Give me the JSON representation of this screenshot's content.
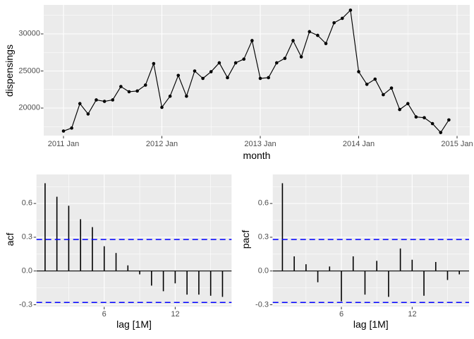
{
  "figure": {
    "background": "#ffffff",
    "panel_background": "#ebebeb",
    "grid_color": "#ffffff",
    "tick_label_color": "#4d4d4d",
    "tick_mark_color": "#333333",
    "series_color": "#000000",
    "ci_color": "#0000ff"
  },
  "chart_data": [
    {
      "id": "dispensings-timeseries",
      "type": "line",
      "xlabel": "month",
      "ylabel": "dispensings",
      "x_start": "2011 Jan",
      "x_interval_months": 1,
      "x_tick_labels": [
        "2011 Jan",
        "2012 Jan",
        "2013 Jan",
        "2014 Jan",
        "2015 Jan"
      ],
      "y_tick_labels": [
        "30000",
        "25000",
        "20000"
      ],
      "y_ticks": [
        30000,
        25000,
        20000
      ],
      "ylim": [
        16000,
        34000
      ],
      "grid": true,
      "legend": "none",
      "values": [
        16900,
        17300,
        20600,
        19200,
        21100,
        20900,
        21100,
        22900,
        22200,
        22300,
        23100,
        26000,
        20100,
        21600,
        24400,
        21600,
        25000,
        24000,
        24900,
        26100,
        24100,
        26100,
        26600,
        29100,
        24000,
        24100,
        26100,
        26700,
        29100,
        26900,
        30300,
        29800,
        28700,
        31500,
        32100,
        33200,
        24900,
        23200,
        23900,
        21800,
        22700,
        19800,
        20600,
        18800,
        18700,
        17900,
        16700,
        18400
      ]
    },
    {
      "id": "acf",
      "type": "stem",
      "xlabel": "lag [1M]",
      "ylabel": "acf",
      "x_tick_labels": [
        "6",
        "12"
      ],
      "x_ticks": [
        6,
        12
      ],
      "y_tick_labels": [
        "0.6",
        "0.3",
        "0.0",
        "-0.3"
      ],
      "y_ticks": [
        0.6,
        0.3,
        0.0,
        -0.3
      ],
      "ylim": [
        -0.32,
        0.86
      ],
      "grid": true,
      "zero_line": true,
      "conf_bounds": [
        0.28,
        -0.28
      ],
      "lags": [
        1,
        2,
        3,
        4,
        5,
        6,
        7,
        8,
        9,
        10,
        11,
        12,
        13,
        14,
        15,
        16
      ],
      "values": [
        0.78,
        0.66,
        0.58,
        0.46,
        0.39,
        0.22,
        0.16,
        0.05,
        -0.03,
        -0.13,
        -0.18,
        -0.11,
        -0.21,
        -0.21,
        -0.22,
        -0.23
      ]
    },
    {
      "id": "pacf",
      "type": "stem",
      "xlabel": "lag [1M]",
      "ylabel": "pacf",
      "x_tick_labels": [
        "6",
        "12"
      ],
      "x_ticks": [
        6,
        12
      ],
      "y_tick_labels": [
        "0.6",
        "0.3",
        "0.0",
        "-0.3"
      ],
      "y_ticks": [
        0.6,
        0.3,
        0.0,
        -0.3
      ],
      "ylim": [
        -0.32,
        0.86
      ],
      "grid": true,
      "zero_line": true,
      "conf_bounds": [
        0.28,
        -0.28
      ],
      "lags": [
        1,
        2,
        3,
        4,
        5,
        6,
        7,
        8,
        9,
        10,
        11,
        12,
        13,
        14,
        15,
        16
      ],
      "values": [
        0.78,
        0.13,
        0.06,
        -0.1,
        0.04,
        -0.27,
        0.13,
        -0.21,
        0.09,
        -0.23,
        0.2,
        0.1,
        -0.22,
        0.08,
        -0.08,
        -0.03
      ]
    }
  ]
}
